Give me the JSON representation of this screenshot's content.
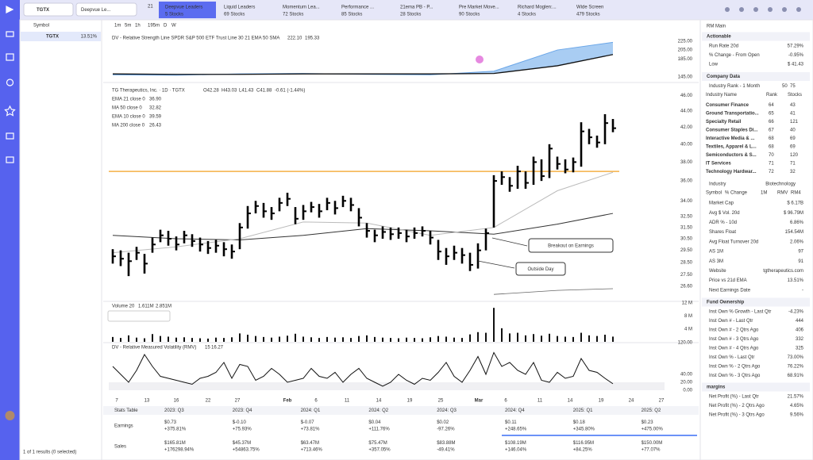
{
  "nav": {
    "search": "TGTX",
    "watchlist": "Deepvue Le...",
    "badge": "21"
  },
  "tabs": [
    {
      "name": "Deepvue Leaders",
      "count": "5 Stocks"
    },
    {
      "name": "Liquid Leaders",
      "count": "69 Stocks"
    },
    {
      "name": "Momentum Lea...",
      "count": "72 Stocks"
    },
    {
      "name": "Performance ...",
      "count": "85 Stocks"
    },
    {
      "name": "21ema PB - P...",
      "count": "28 Stocks"
    },
    {
      "name": "Pre Market Move...",
      "count": "90 Stocks"
    },
    {
      "name": "Richard Moglen:...",
      "count": "4 Stocks"
    },
    {
      "name": "Wide Screen",
      "count": "479 Stocks"
    }
  ],
  "watchlist": {
    "header": "Symbol",
    "rows": [
      {
        "symbol": "TGTX",
        "change": "13.51%"
      }
    ],
    "footer": "1 of 1 results (0 selected)"
  },
  "toolbar": {
    "intervals": [
      "1m",
      "5m",
      "1h",
      "195m",
      "D",
      "W"
    ]
  },
  "rs_panel": {
    "legend": "DV - Relative Strength Line SPDR S&P 500 ETF Trust Line 30 21 EMA 50 SMA",
    "values": [
      "222.10",
      "195.33"
    ],
    "ylim": [
      140,
      235
    ],
    "yticks": [
      {
        "value": 225,
        "label": "225.00"
      },
      {
        "value": 205,
        "label": "205.00"
      },
      {
        "value": 185,
        "label": "185.00"
      },
      {
        "value": 145,
        "label": "145.00"
      }
    ],
    "index": [
      0,
      8,
      16,
      24,
      32,
      40,
      48,
      56,
      63
    ],
    "rs": [
      150,
      149,
      152,
      153,
      151,
      150,
      158,
      205,
      222
    ],
    "sma": [
      152,
      151,
      151,
      152,
      152,
      152,
      153,
      170,
      195
    ]
  },
  "price_panel": {
    "title": "TG Therapeutics, Inc. · 1D · TGTX",
    "ohlc": [
      "O42.28",
      "H43.03",
      "L41.43",
      "C41.88",
      "-0.61 (-1.44%)"
    ],
    "indicators": [
      {
        "name": "EMA 21 close 0",
        "value": "36.90"
      },
      {
        "name": "MA 50 close 0",
        "value": "32.82"
      },
      {
        "name": "EMA 10 close 0",
        "value": "39.59"
      },
      {
        "name": "MA 200 close 0",
        "value": "26.43"
      }
    ],
    "ylim": [
      25.6,
      47.1
    ],
    "log_scale": true,
    "yticks": [
      {
        "value": 46,
        "label": "46.00"
      },
      {
        "value": 44,
        "label": "44.00"
      },
      {
        "value": 42,
        "label": "42.00"
      },
      {
        "value": 40,
        "label": "40.00"
      },
      {
        "value": 38,
        "label": "38.00"
      },
      {
        "value": 36,
        "label": "36.00"
      },
      {
        "value": 34,
        "label": "34.00"
      },
      {
        "value": 32.5,
        "label": "32.50"
      },
      {
        "value": 31.5,
        "label": "31.50"
      },
      {
        "value": 30.5,
        "label": "30.50"
      },
      {
        "value": 29.5,
        "label": "29.50"
      },
      {
        "value": 28.5,
        "label": "28.50"
      },
      {
        "value": 27.5,
        "label": "27.50"
      },
      {
        "value": 26.6,
        "label": "26.60"
      }
    ],
    "high": [
      29.6,
      29.5,
      29.3,
      29.8,
      29.2,
      30.6,
      31.3,
      31.2,
      30.7,
      31.2,
      30.9,
      30.6,
      30.3,
      30.4,
      30.2,
      30.0,
      31.9,
      33.5,
      34.0,
      33.8,
      33.4,
      34.3,
      34.8,
      33.4,
      33.6,
      33.9,
      33.7,
      34.3,
      34.0,
      34.5,
      34.3,
      33.3,
      31.9,
      31.3,
      31.6,
      31.5,
      31.5,
      31.3,
      31.5,
      31.6,
      31.2,
      30.4,
      29.7,
      29.9,
      29.7,
      29.3,
      30.1,
      31.4,
      36.6,
      37.0,
      36.4,
      37.6,
      37.0,
      38.6,
      38.3,
      40.0,
      38.6,
      38.3,
      38.5,
      42.6,
      41.8,
      41.0,
      43.6,
      43.0
    ],
    "low": [
      28.4,
      28.2,
      27.4,
      28.7,
      27.6,
      29.3,
      30.2,
      29.9,
      29.5,
      30.1,
      29.8,
      29.4,
      29.2,
      29.3,
      29.0,
      28.8,
      29.6,
      31.4,
      32.8,
      32.4,
      32.2,
      33.0,
      33.5,
      31.8,
      32.2,
      32.9,
      32.4,
      33.1,
      32.7,
      33.4,
      33.0,
      31.6,
      30.6,
      30.2,
      30.5,
      30.4,
      30.5,
      30.2,
      30.5,
      30.7,
      30.0,
      28.7,
      28.3,
      28.7,
      28.4,
      27.8,
      28.0,
      29.5,
      31.5,
      35.6,
      34.9,
      35.2,
      35.2,
      35.6,
      36.0,
      36.3,
      37.2,
      36.8,
      36.9,
      37.5,
      40.0,
      39.6,
      40.0,
      41.4
    ],
    "close": [
      29.0,
      28.8,
      28.6,
      29.3,
      28.4,
      30.0,
      30.8,
      30.5,
      30.0,
      30.8,
      30.3,
      30.0,
      29.7,
      29.9,
      29.6,
      29.4,
      31.5,
      32.8,
      33.5,
      33.0,
      32.8,
      33.8,
      34.2,
      32.3,
      33.0,
      33.4,
      33.0,
      33.8,
      33.3,
      34.0,
      33.6,
      32.4,
      31.2,
      30.8,
      31.1,
      30.9,
      31.0,
      30.7,
      31.0,
      31.2,
      30.6,
      29.4,
      29.0,
      29.3,
      29.1,
      28.3,
      29.5,
      31.0,
      36.0,
      36.4,
      35.5,
      37.0,
      35.8,
      38.0,
      36.5,
      39.5,
      37.8,
      37.2,
      38.0,
      41.5,
      40.8,
      40.2,
      42.5,
      41.88
    ],
    "ma_index": [
      0,
      8,
      16,
      24,
      32,
      40,
      48,
      56,
      63
    ],
    "ema21": [
      29.3,
      29.8,
      30.5,
      32.0,
      31.9,
      30.8,
      31.5,
      35.0,
      36.9
    ],
    "ma50": [
      30.8,
      30.5,
      30.4,
      30.8,
      31.4,
      31.2,
      30.9,
      31.8,
      32.8
    ],
    "ma200": [
      null,
      null,
      null,
      null,
      null,
      null,
      26.0,
      26.3,
      26.43
    ],
    "level": 37.0,
    "annotations": [
      "Breakout on Earnings",
      "Outside Day"
    ]
  },
  "volume_panel": {
    "legend": "Volume 20",
    "values": [
      "1.611M",
      "2.851M"
    ],
    "ylim": [
      0,
      12.5
    ],
    "yticks": [
      {
        "value": 12,
        "label": "12 M"
      },
      {
        "value": 8,
        "label": "8 M"
      },
      {
        "value": 4,
        "label": "4 M"
      }
    ],
    "volume": [
      1.5,
      1.2,
      2.0,
      1.3,
      1.1,
      2.4,
      1.8,
      1.6,
      1.3,
      1.4,
      1.2,
      1.1,
      1.0,
      1.3,
      1.2,
      1.4,
      2.6,
      2.2,
      1.8,
      1.5,
      1.3,
      1.6,
      1.9,
      2.5,
      1.6,
      1.4,
      1.2,
      1.5,
      1.3,
      1.4,
      1.2,
      1.8,
      2.0,
      1.5,
      1.3,
      1.2,
      1.1,
      1.3,
      1.2,
      1.1,
      1.4,
      1.8,
      1.6,
      1.3,
      1.2,
      2.3,
      3.0,
      2.8,
      10.5,
      4.2,
      2.6,
      2.8,
      2.0,
      2.4,
      1.9,
      2.5,
      1.8,
      1.6,
      1.5,
      2.8,
      2.0,
      1.8,
      2.2,
      1.611
    ]
  },
  "rmv_panel": {
    "legend": "DV - Relative Measured Volatility (RMV)",
    "params": "15",
    "value": "16.27",
    "ylim": [
      0,
      120
    ],
    "yticks": [
      {
        "value": 120,
        "label": "120.00"
      },
      {
        "value": 40,
        "label": "40.00"
      },
      {
        "value": 20,
        "label": "20.00"
      },
      {
        "value": 0,
        "label": "0.00"
      }
    ],
    "rmv": [
      60,
      40,
      20,
      50,
      90,
      60,
      35,
      30,
      25,
      20,
      15,
      30,
      35,
      45,
      70,
      30,
      65,
      60,
      25,
      35,
      55,
      40,
      20,
      25,
      30,
      55,
      35,
      30,
      45,
      20,
      40,
      55,
      30,
      20,
      10,
      20,
      40,
      25,
      15,
      30,
      25,
      45,
      70,
      35,
      20,
      50,
      85,
      40,
      95,
      60,
      70,
      50,
      40,
      70,
      25,
      20,
      45,
      30,
      35,
      80,
      50,
      45,
      30,
      16.27
    ]
  },
  "x_axis": {
    "labels": [
      "7",
      "13",
      "16",
      "22",
      "27",
      "Feb",
      "6",
      "11",
      "14",
      "19",
      "25",
      "Mar",
      "6",
      "11",
      "14",
      "19",
      "24",
      "27"
    ]
  },
  "stats_table": {
    "columns": [
      "Stats Table",
      "2023: Q3",
      "2023: Q4",
      "2024: Q1",
      "2024: Q2",
      "2024: Q3",
      "2024: Q4",
      "2025: Q1",
      "2025: Q2"
    ],
    "rows": [
      {
        "label": "Earnings",
        "cells": [
          [
            "$0.73",
            "+375.81%"
          ],
          [
            "$-0.10",
            "+75.93%"
          ],
          [
            "$-0.07",
            "+73.81%"
          ],
          [
            "$0.04",
            "+111.76%"
          ],
          [
            "$0.02",
            "-97.26%"
          ],
          [
            "$0.11",
            "+248.65%"
          ],
          [
            "$0.18",
            "+345.80%"
          ],
          [
            "$0.23",
            "+475.00%"
          ]
        ]
      },
      {
        "label": "Sales",
        "cells": [
          [
            "$165.81M",
            "+176298.94%"
          ],
          [
            "$45.37M",
            "+54863.75%"
          ],
          [
            "$63.47M",
            "+713.46%"
          ],
          [
            "$75.47M",
            "+357.05%"
          ],
          [
            "$83.88M",
            "-49.41%"
          ],
          [
            "$108.19M",
            "+146.04%"
          ],
          [
            "$116.95M",
            "+84.25%"
          ],
          [
            "$150.00M",
            "+77.07%"
          ]
        ]
      }
    ]
  },
  "side_panel": {
    "title": "RM Main",
    "actionable": {
      "title": "Actionable",
      "rows": [
        {
          "label": "Run Rate 20d",
          "value": "57.29%",
          "tone": "muted"
        },
        {
          "label": "% Change - From Open",
          "value": "-0.95%",
          "tone": "red"
        },
        {
          "label": "Low",
          "value": "$ 41.43"
        }
      ]
    },
    "company": {
      "title": "Company Data",
      "rank_label": "Industry Rank - 1 Month",
      "rank_value": "50",
      "rank_alt": "75",
      "columns": [
        "Industry Name",
        "Rank",
        "Stocks"
      ],
      "industries": [
        [
          "Consumer Finance",
          "64",
          "43"
        ],
        [
          "Ground Transportatio...",
          "65",
          "41"
        ],
        [
          "Specialty Retail",
          "66",
          "121"
        ],
        [
          "Consumer Staples Di...",
          "67",
          "40"
        ],
        [
          "Interactive Media & ...",
          "68",
          "69"
        ],
        [
          "Textiles, Apparel & L...",
          "68",
          "69"
        ],
        [
          "Semiconductors & S...",
          "70",
          "120"
        ],
        [
          "IT Services",
          "71",
          "71"
        ],
        [
          "Technology Hardwar...",
          "72",
          "32"
        ]
      ],
      "industry_label": "Industry",
      "industry": "Biotechnology",
      "sub_columns": [
        "Symbol",
        "% Change",
        "1M",
        "RMV",
        "RM4"
      ],
      "rows": [
        {
          "label": "Market Cap",
          "value": "$ 6.17B"
        },
        {
          "label": "Avg $ Vol. 20d",
          "value": "$ 96.79M"
        },
        {
          "label": "ADR % - 10d",
          "value": "6.86%"
        },
        {
          "label": "Shares Float",
          "value": "154.54M"
        },
        {
          "label": "Avg Float Turnover 20d",
          "value": "2.06%"
        },
        {
          "label": "AS 1M",
          "value": "97"
        },
        {
          "label": "AS 3M",
          "value": "91"
        },
        {
          "label": "Website",
          "value": "tgtherapeutics.com"
        },
        {
          "label": "Price vs 21d EMA",
          "value": "13.51%",
          "tone": "blue"
        },
        {
          "label": "Next Earnings Date",
          "value": "-"
        }
      ]
    },
    "fund": {
      "title": "Fund Ownership",
      "rows": [
        {
          "label": "Inst Own % Growth - Last Qtr",
          "value": "-4.23%",
          "tone": "red"
        },
        {
          "label": "Inst Own # - Last Qtr",
          "value": "444"
        },
        {
          "label": "Inst Own # - 2 Qtrs Ago",
          "value": "406"
        },
        {
          "label": "Inst Own # - 3 Qtrs Ago",
          "value": "332"
        },
        {
          "label": "Inst Own # - 4 Qtrs Ago",
          "value": "325"
        },
        {
          "label": "Inst Own % - Last Qtr",
          "value": "73.00%"
        },
        {
          "label": "Inst Own % - 2 Qtrs Ago",
          "value": "76.22%"
        },
        {
          "label": "Inst Own % - 3 Qtrs Ago",
          "value": "68.91%"
        }
      ]
    },
    "margins": {
      "title": "margins",
      "rows": [
        {
          "label": "Net Profit (%) - Last Qtr",
          "value": "21.57%"
        },
        {
          "label": "Net Profit (%) - 2 Qtrs Ago",
          "value": "4.65%"
        },
        {
          "label": "Net Profit (%) - 3 Qtrs Ago",
          "value": "9.56%"
        }
      ]
    }
  }
}
